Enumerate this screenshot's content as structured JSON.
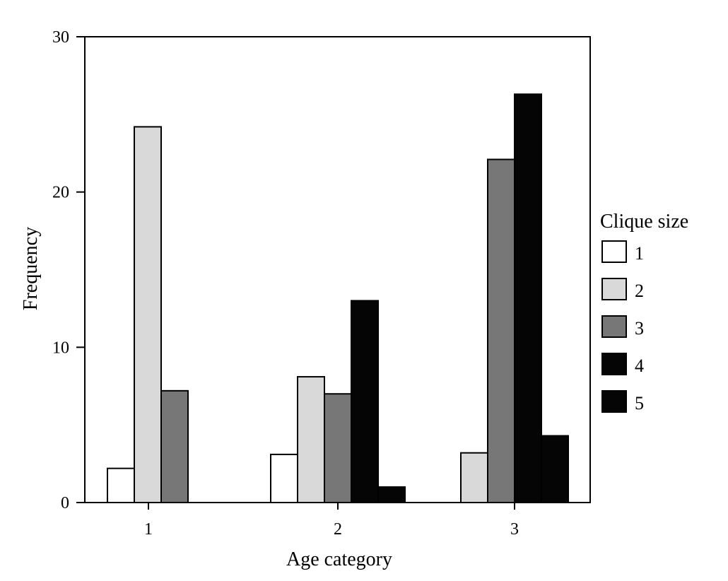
{
  "chart_data": {
    "type": "bar",
    "xlabel": "Age category",
    "ylabel": "Frequency",
    "ylim": [
      0,
      30
    ],
    "yticks": [
      "0",
      "10",
      "20",
      "30"
    ],
    "categories": [
      "1",
      "2",
      "3"
    ],
    "legend": {
      "title": "Clique size",
      "placement": "right"
    },
    "series": [
      {
        "name": "1",
        "color": "#ffffff",
        "values": [
          2.2,
          3.1,
          0
        ]
      },
      {
        "name": "2",
        "color": "#d9d9d9",
        "values": [
          24.2,
          8.1,
          3.2
        ]
      },
      {
        "name": "3",
        "color": "#777777",
        "values": [
          7.2,
          7.0,
          22.1
        ]
      },
      {
        "name": "4",
        "color": "#050505",
        "values": [
          0,
          13.0,
          26.3
        ]
      },
      {
        "name": "5",
        "color": "#050505",
        "values": [
          0,
          1.0,
          4.3
        ]
      }
    ],
    "grid": false
  }
}
